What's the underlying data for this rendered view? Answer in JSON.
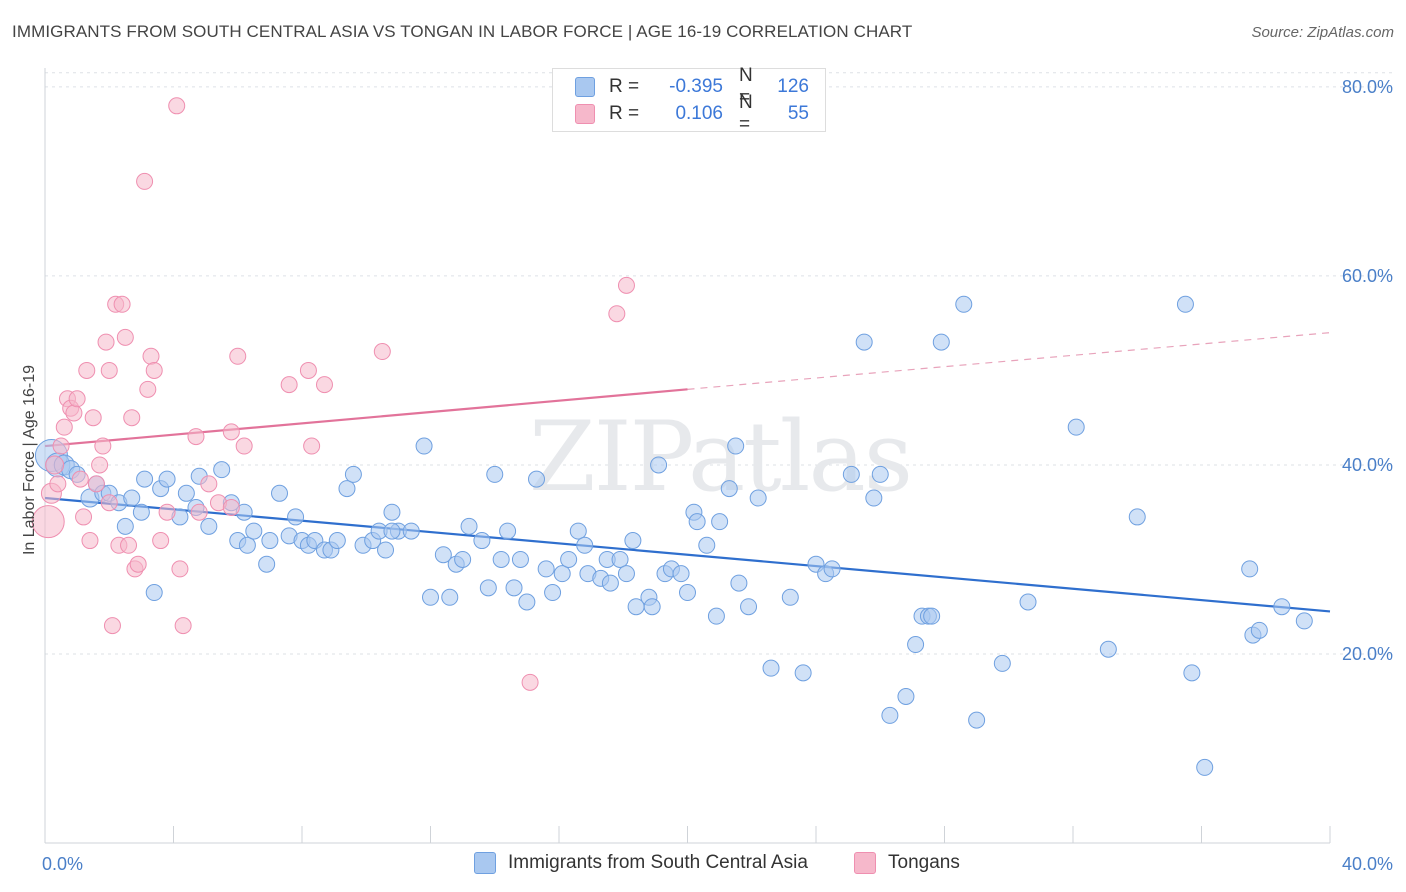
{
  "header": {
    "title": "IMMIGRANTS FROM SOUTH CENTRAL ASIA VS TONGAN IN LABOR FORCE | AGE 16-19 CORRELATION CHART",
    "source": "Source: ZipAtlas.com"
  },
  "watermark": "ZIPatlas",
  "legend": {
    "rows": [
      {
        "r_label": "R =",
        "r_value": "-0.395",
        "n_label": "N =",
        "n_value": "126",
        "color": "#a9c8f0"
      },
      {
        "r_label": "R =",
        "r_value": "0.106",
        "n_label": "N =",
        "n_value": "55",
        "color": "#f6b8cb"
      }
    ]
  },
  "bottom_legend": {
    "items": [
      {
        "label": "Immigrants from South Central Asia",
        "color": "#a9c8f0"
      },
      {
        "label": "Tongans",
        "color": "#f6b8cb"
      }
    ]
  },
  "chart_data": {
    "type": "scatter",
    "xlabel": "",
    "ylabel": "In Labor Force | Age 16-19",
    "xlim": [
      0,
      40
    ],
    "ylim": [
      0,
      82
    ],
    "x_tick_labels": [
      "0.0%",
      "40.0%"
    ],
    "y_ticks": [
      20,
      40,
      60,
      80
    ],
    "y_tick_labels": [
      "20.0%",
      "40.0%",
      "60.0%",
      "80.0%"
    ],
    "grid": true,
    "legend_position": "top-center",
    "series": [
      {
        "name": "Immigrants from South Central Asia",
        "color": "#6fa0e0",
        "fill": "#a9c8f0",
        "trend": {
          "x0": 0,
          "y0": 36.5,
          "x1": 40,
          "y1": 24.5
        },
        "points": [
          [
            0.2,
            41,
            16
          ],
          [
            0.4,
            40,
            12
          ],
          [
            0.6,
            40,
            10
          ],
          [
            0.8,
            39.5,
            9
          ],
          [
            1.0,
            39,
            8
          ],
          [
            1.4,
            36.5,
            9
          ],
          [
            1.6,
            38,
            8
          ],
          [
            1.8,
            37,
            8
          ],
          [
            2.0,
            37,
            8
          ],
          [
            2.3,
            36,
            8
          ],
          [
            2.5,
            33.5,
            8
          ],
          [
            2.7,
            36.5,
            8
          ],
          [
            3.0,
            35,
            8
          ],
          [
            3.1,
            38.5,
            8
          ],
          [
            3.4,
            26.5,
            8
          ],
          [
            3.6,
            37.5,
            8
          ],
          [
            3.8,
            38.5,
            8
          ],
          [
            4.2,
            34.5,
            8
          ],
          [
            4.4,
            37,
            8
          ],
          [
            4.7,
            35.5,
            8
          ],
          [
            4.8,
            38.8,
            8
          ],
          [
            5.1,
            33.5,
            8
          ],
          [
            5.5,
            39.5,
            8
          ],
          [
            5.8,
            36,
            8
          ],
          [
            6.0,
            32,
            8
          ],
          [
            6.2,
            35,
            8
          ],
          [
            6.3,
            31.5,
            8
          ],
          [
            6.5,
            33,
            8
          ],
          [
            6.9,
            29.5,
            8
          ],
          [
            7.0,
            32,
            8
          ],
          [
            7.3,
            37,
            8
          ],
          [
            7.6,
            32.5,
            8
          ],
          [
            7.8,
            34.5,
            8
          ],
          [
            8.0,
            32,
            8
          ],
          [
            8.2,
            31.5,
            8
          ],
          [
            8.4,
            32,
            8
          ],
          [
            8.7,
            31,
            8
          ],
          [
            8.9,
            31,
            8
          ],
          [
            9.1,
            32,
            8
          ],
          [
            9.4,
            37.5,
            8
          ],
          [
            9.6,
            39,
            8
          ],
          [
            9.9,
            31.5,
            8
          ],
          [
            10.2,
            32,
            8
          ],
          [
            10.4,
            33,
            8
          ],
          [
            10.6,
            31,
            8
          ],
          [
            10.8,
            35,
            8
          ],
          [
            11.0,
            33,
            8
          ],
          [
            11.4,
            33,
            8
          ],
          [
            10.8,
            33,
            8
          ],
          [
            11.8,
            42,
            8
          ],
          [
            12.0,
            26,
            8
          ],
          [
            12.4,
            30.5,
            8
          ],
          [
            12.8,
            29.5,
            8
          ],
          [
            12.6,
            26,
            8
          ],
          [
            13.2,
            33.5,
            8
          ],
          [
            13.0,
            30,
            8
          ],
          [
            13.6,
            32,
            8
          ],
          [
            13.8,
            27,
            8
          ],
          [
            14.0,
            39,
            8
          ],
          [
            14.2,
            30,
            8
          ],
          [
            14.4,
            33,
            8
          ],
          [
            14.6,
            27,
            8
          ],
          [
            14.8,
            30,
            8
          ],
          [
            15.0,
            25.5,
            8
          ],
          [
            15.3,
            38.5,
            8
          ],
          [
            15.6,
            29,
            8
          ],
          [
            15.8,
            26.5,
            8
          ],
          [
            16.1,
            28.5,
            8
          ],
          [
            16.3,
            30,
            8
          ],
          [
            16.6,
            33,
            8
          ],
          [
            16.8,
            31.5,
            8
          ],
          [
            16.9,
            28.5,
            8
          ],
          [
            17.3,
            28,
            8
          ],
          [
            17.5,
            30,
            8
          ],
          [
            17.6,
            27.5,
            8
          ],
          [
            17.9,
            30,
            8
          ],
          [
            18.1,
            28.5,
            8
          ],
          [
            18.3,
            32,
            8
          ],
          [
            18.4,
            25,
            8
          ],
          [
            18.8,
            26,
            8
          ],
          [
            18.9,
            25,
            8
          ],
          [
            19.1,
            40,
            8
          ],
          [
            19.3,
            28.5,
            8
          ],
          [
            19.5,
            29,
            8
          ],
          [
            19.8,
            28.5,
            8
          ],
          [
            20.0,
            26.5,
            8
          ],
          [
            20.2,
            35,
            8
          ],
          [
            20.3,
            34,
            8
          ],
          [
            20.6,
            31.5,
            8
          ],
          [
            20.9,
            24,
            8
          ],
          [
            21.0,
            34,
            8
          ],
          [
            21.3,
            37.5,
            8
          ],
          [
            21.5,
            42,
            8
          ],
          [
            21.6,
            27.5,
            8
          ],
          [
            21.9,
            25,
            8
          ],
          [
            22.2,
            36.5,
            8
          ],
          [
            22.6,
            18.5,
            8
          ],
          [
            23.2,
            26,
            8
          ],
          [
            23.6,
            18,
            8
          ],
          [
            24.0,
            29.5,
            8
          ],
          [
            24.3,
            28.5,
            8
          ],
          [
            24.5,
            29,
            8
          ],
          [
            25.1,
            39,
            8
          ],
          [
            25.5,
            53,
            8
          ],
          [
            25.8,
            36.5,
            8
          ],
          [
            26.0,
            39,
            8
          ],
          [
            26.3,
            13.5,
            8
          ],
          [
            26.8,
            15.5,
            8
          ],
          [
            27.1,
            21,
            8
          ],
          [
            27.3,
            24,
            8
          ],
          [
            27.5,
            24,
            8
          ],
          [
            27.6,
            24,
            8
          ],
          [
            27.9,
            53,
            8
          ],
          [
            28.6,
            57,
            8
          ],
          [
            29.0,
            13,
            8
          ],
          [
            29.8,
            19,
            8
          ],
          [
            30.6,
            25.5,
            8
          ],
          [
            32.1,
            44,
            8
          ],
          [
            33.1,
            20.5,
            8
          ],
          [
            34.0,
            34.5,
            8
          ],
          [
            35.5,
            57,
            8
          ],
          [
            35.7,
            18,
            8
          ],
          [
            36.1,
            8,
            8
          ],
          [
            37.5,
            29,
            8
          ],
          [
            37.6,
            22,
            8
          ],
          [
            37.8,
            22.5,
            8
          ],
          [
            38.5,
            25,
            8
          ],
          [
            39.2,
            23.5,
            8
          ]
        ]
      },
      {
        "name": "Tongans",
        "color": "#ef8fb0",
        "fill": "#f6b8cb",
        "trend": {
          "x0": 0,
          "y0": 42,
          "x1": 20,
          "y1": 48,
          "dash_to_x": 40,
          "dash_to_y": 54
        },
        "points": [
          [
            0.1,
            34,
            16
          ],
          [
            0.2,
            37,
            10
          ],
          [
            0.3,
            40,
            9
          ],
          [
            0.5,
            42,
            8
          ],
          [
            0.6,
            44,
            8
          ],
          [
            0.7,
            47,
            8
          ],
          [
            0.8,
            46,
            8
          ],
          [
            0.9,
            45.5,
            8
          ],
          [
            1.0,
            47,
            8
          ],
          [
            1.1,
            38.5,
            8
          ],
          [
            1.3,
            50,
            8
          ],
          [
            1.4,
            32,
            8
          ],
          [
            1.5,
            45,
            8
          ],
          [
            1.6,
            38,
            8
          ],
          [
            1.7,
            40,
            8
          ],
          [
            1.8,
            42,
            8
          ],
          [
            1.9,
            53,
            8
          ],
          [
            2.0,
            50,
            8
          ],
          [
            2.1,
            23,
            8
          ],
          [
            2.2,
            57,
            8
          ],
          [
            2.3,
            31.5,
            8
          ],
          [
            2.4,
            57,
            8
          ],
          [
            2.5,
            53.5,
            8
          ],
          [
            2.6,
            31.5,
            8
          ],
          [
            2.7,
            45,
            8
          ],
          [
            2.8,
            29,
            8
          ],
          [
            2.9,
            29.5,
            8
          ],
          [
            3.1,
            70,
            8
          ],
          [
            3.2,
            48,
            8
          ],
          [
            3.3,
            51.5,
            8
          ],
          [
            3.4,
            50,
            8
          ],
          [
            3.6,
            32,
            8
          ],
          [
            3.8,
            35,
            8
          ],
          [
            4.1,
            78,
            8
          ],
          [
            4.2,
            29,
            8
          ],
          [
            4.3,
            23,
            8
          ],
          [
            4.7,
            43,
            8
          ],
          [
            4.8,
            35,
            8
          ],
          [
            5.1,
            38,
            8
          ],
          [
            5.4,
            36,
            8
          ],
          [
            5.8,
            43.5,
            8
          ],
          [
            6.0,
            51.5,
            8
          ],
          [
            6.2,
            42,
            8
          ],
          [
            5.8,
            35.5,
            8
          ],
          [
            7.6,
            48.5,
            8
          ],
          [
            8.2,
            50,
            8
          ],
          [
            8.3,
            42,
            8
          ],
          [
            8.7,
            48.5,
            8
          ],
          [
            10.5,
            52,
            8
          ],
          [
            15.1,
            17,
            8
          ],
          [
            17.8,
            56,
            8
          ],
          [
            18.1,
            59,
            8
          ],
          [
            1.2,
            34.5,
            8
          ],
          [
            0.4,
            38,
            8
          ],
          [
            2.0,
            36,
            8
          ]
        ]
      }
    ]
  }
}
